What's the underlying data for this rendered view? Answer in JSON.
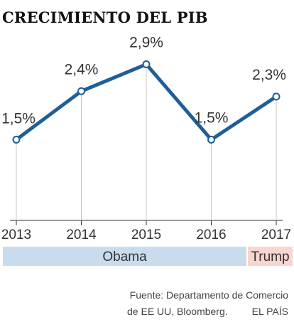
{
  "chart_data": {
    "type": "line",
    "title": "CRECIMIENTO DEL PIB",
    "x": [
      "2013",
      "2014",
      "2015",
      "2016",
      "2017"
    ],
    "series": [
      {
        "values": [
          1.5,
          2.4,
          2.9,
          1.5,
          2.3
        ]
      }
    ],
    "data_labels": [
      "1,5%",
      "2,4%",
      "2,9%",
      "1,5%",
      "2,3%"
    ],
    "ylim": [
      0,
      3.5
    ],
    "grid": false,
    "legend": "none",
    "periods": [
      {
        "label": "Obama",
        "start": 2013,
        "end": 2017,
        "color": "#c9dcee"
      },
      {
        "label": "Trump",
        "start": 2017,
        "end": 2017,
        "color": "#f8d6cf"
      }
    ],
    "colors": {
      "line": "#1f5f97",
      "marker_fill": "#ffffff",
      "axis": "#333333",
      "guide": "#c8c8c8"
    }
  },
  "source": {
    "line1": "Fuente: Departamento de Comercio",
    "line2": "de EE UU, Bloomberg.",
    "outlet": "EL PAÍS"
  }
}
